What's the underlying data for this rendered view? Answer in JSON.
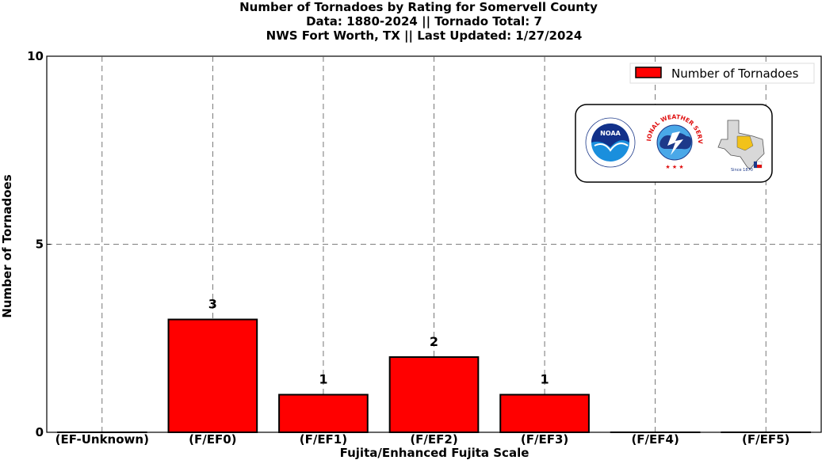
{
  "chart_data": {
    "type": "bar",
    "title_lines": [
      "Number of Tornadoes by Rating for Somervell County",
      "Data: 1880-2024 || Tornado Total: 7",
      "NWS Fort Worth, TX || Last Updated: 1/27/2024"
    ],
    "xlabel": "Fujita/Enhanced Fujita Scale",
    "ylabel": "Number of Tornadoes",
    "categories": [
      "(EF-Unknown)",
      "(F/EF0)",
      "(F/EF1)",
      "(F/EF2)",
      "(F/EF3)",
      "(F/EF4)",
      "(F/EF5)"
    ],
    "values": [
      0,
      3,
      1,
      2,
      1,
      0,
      0
    ],
    "data_labels": [
      "",
      "3",
      "1",
      "2",
      "1",
      "",
      ""
    ],
    "ylim": [
      0,
      10
    ],
    "yticks": [
      "0",
      "5",
      "10"
    ],
    "legend": {
      "label": "Number of Tornadoes",
      "position": "top-right"
    },
    "grid": true,
    "bar_color": "#ff0000"
  },
  "logos": [
    {
      "name": "noaa-logo",
      "text": "NOAA"
    },
    {
      "name": "nws-logo",
      "text": "NATIONAL WEATHER SERVICE"
    },
    {
      "name": "texas-logo",
      "text": "Since 1870"
    }
  ]
}
